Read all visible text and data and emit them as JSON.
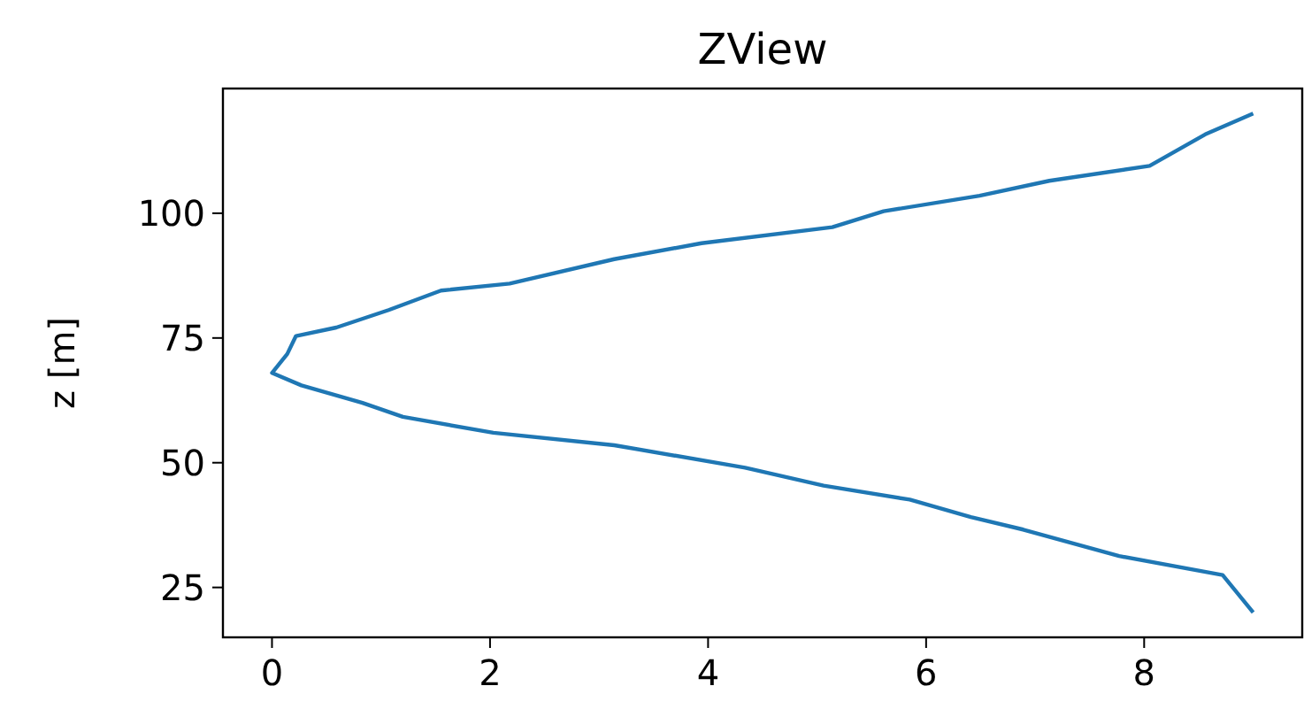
{
  "chart_data": {
    "type": "line",
    "title": "ZView",
    "ylabel": "z [m]",
    "series": [
      {
        "color": "#1f77b4",
        "x": [
          9,
          8.56,
          8.05,
          7.13,
          6.49,
          5.61,
          5.14,
          3.94,
          3.14,
          2.18,
          1.55,
          1.07,
          0.59,
          0.22,
          0.14,
          0,
          0.27,
          0.83,
          1.2,
          2.03,
          3.14,
          4.34,
          5.06,
          5.85,
          6.41,
          6.89,
          7.77,
          8.72,
          9
        ],
        "values": [
          120,
          115.8,
          109.5,
          106.5,
          103.5,
          100.4,
          97.2,
          94,
          90.8,
          85.9,
          84.5,
          80.6,
          77.1,
          75.4,
          71.8,
          68,
          65.5,
          62,
          59.2,
          56,
          53.5,
          49,
          45.4,
          42.6,
          39.1,
          36.6,
          31.3,
          27.5,
          20
        ]
      }
    ],
    "xlim": [
      -0.45,
      9.45
    ],
    "ylim": [
      15,
      125
    ],
    "xticks": [
      0,
      2,
      4,
      6,
      8
    ],
    "yticks": [
      25,
      50,
      75,
      100
    ],
    "grid": false
  }
}
